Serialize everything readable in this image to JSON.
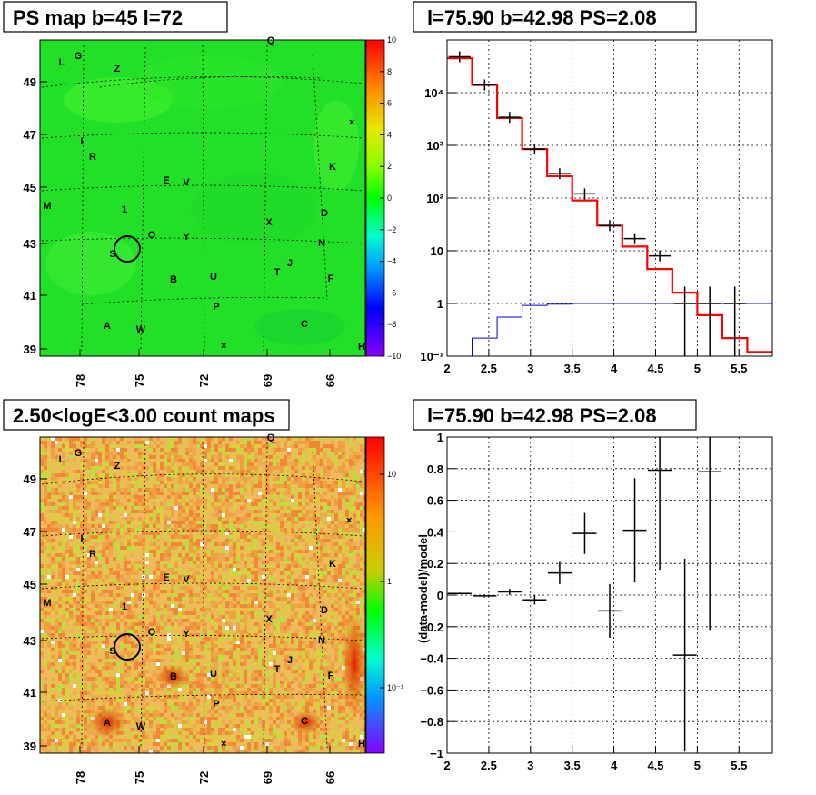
{
  "chart_data": [
    {
      "type": "heatmap",
      "title": "PS map b=45 l=72",
      "x_ticks": [
        "78",
        "75",
        "72",
        "69",
        "66"
      ],
      "y_ticks": [
        "39",
        "41",
        "43",
        "45",
        "47",
        "49"
      ],
      "colorbar_ticks": [
        "10",
        "8",
        "6",
        "4",
        "2",
        "0",
        "−2",
        "−4",
        "−6",
        "−8",
        "−10"
      ],
      "zrange": [
        -10,
        10
      ],
      "dominant_value": 0,
      "sources": [
        "Q",
        "L",
        "G",
        "Z",
        "I",
        "R",
        "E",
        "V",
        "K",
        "M",
        "1",
        "D",
        "X",
        "O",
        "Y",
        "N",
        "S",
        "T",
        "J",
        "B",
        "U",
        "F",
        "P",
        "A",
        "W",
        "C",
        "H"
      ]
    },
    {
      "type": "line",
      "title": "l=75.90 b=42.98 PS=2.08",
      "log_y": true,
      "xlim": [
        2,
        5.9
      ],
      "x_ticks": [
        "2",
        "2.5",
        "3",
        "3.5",
        "4",
        "4.5",
        "5",
        "5.5"
      ],
      "y_ticks": [
        "10⁻¹",
        "1",
        "10",
        "10²",
        "10³",
        "10⁴"
      ],
      "bin_edges": [
        2.0,
        2.3,
        2.6,
        2.9,
        3.2,
        3.5,
        3.8,
        4.1,
        4.4,
        4.7,
        5.0,
        5.3,
        5.6,
        5.9
      ],
      "series": [
        {
          "name": "",
          "color": "#ff0000",
          "values": [
            45000,
            14000,
            3300,
            850,
            260,
            90,
            30,
            12,
            4.5,
            1.6,
            0.6,
            0.22,
            0.12
          ]
        },
        {
          "name": "",
          "color": "#0000cc",
          "values": [
            0.1,
            0.22,
            0.55,
            0.92,
            0.97,
            1.0,
            1.0,
            1.0,
            1.0,
            1.0,
            1.0,
            1.0,
            1.0
          ]
        }
      ],
      "data_points": [
        {
          "x": 2.15,
          "y": 48000
        },
        {
          "x": 2.45,
          "y": 14000
        },
        {
          "x": 2.75,
          "y": 3400
        },
        {
          "x": 3.05,
          "y": 850
        },
        {
          "x": 3.35,
          "y": 290
        },
        {
          "x": 3.65,
          "y": 120
        },
        {
          "x": 3.95,
          "y": 30
        },
        {
          "x": 4.25,
          "y": 17
        },
        {
          "x": 4.55,
          "y": 8
        },
        {
          "x": 4.85,
          "y": 1
        },
        {
          "x": 5.15,
          "y": 1
        },
        {
          "x": 5.45,
          "y": 1
        }
      ]
    },
    {
      "type": "heatmap",
      "title": "2.50<logE<3.00 count maps",
      "x_ticks": [
        "78",
        "75",
        "72",
        "69",
        "66"
      ],
      "y_ticks": [
        "39",
        "41",
        "43",
        "45",
        "47",
        "49"
      ],
      "colorbar_ticks": [
        "10",
        "1",
        "10⁻¹"
      ],
      "log_z": true,
      "sources": [
        "Q",
        "L",
        "G",
        "Z",
        "I",
        "R",
        "E",
        "V",
        "K",
        "M",
        "1",
        "D",
        "X",
        "O",
        "Y",
        "N",
        "S",
        "T",
        "J",
        "B",
        "U",
        "F",
        "P",
        "A",
        "W",
        "C",
        "H"
      ]
    },
    {
      "type": "scatter",
      "title": "l=75.90 b=42.98 PS=2.08",
      "ylabel": "(data-model)/model",
      "xlim": [
        2,
        5.9
      ],
      "ylim": [
        -1,
        1
      ],
      "x_ticks": [
        "2",
        "2.5",
        "3",
        "3.5",
        "4",
        "4.5",
        "5",
        "5.5"
      ],
      "y_ticks": [
        "1",
        "0.8",
        "0.6",
        "0.4",
        "0.2",
        "0",
        "−0.2",
        "−0.4",
        "−0.6",
        "−0.8",
        "−1"
      ],
      "points": [
        {
          "x": 2.15,
          "y": 0.01,
          "err": 0.005
        },
        {
          "x": 2.45,
          "y": -0.005,
          "err": 0.01
        },
        {
          "x": 2.75,
          "y": 0.02,
          "err": 0.02
        },
        {
          "x": 3.05,
          "y": -0.03,
          "err": 0.03
        },
        {
          "x": 3.35,
          "y": 0.14,
          "err": 0.07
        },
        {
          "x": 3.65,
          "y": 0.39,
          "err": 0.13
        },
        {
          "x": 3.95,
          "y": -0.1,
          "err": 0.17
        },
        {
          "x": 4.25,
          "y": 0.41,
          "err": 0.33
        },
        {
          "x": 4.55,
          "y": 0.79,
          "err": 0.63
        },
        {
          "x": 4.85,
          "y": -0.38,
          "err": 0.61
        },
        {
          "x": 5.15,
          "y": 0.78,
          "err": 1.0
        }
      ]
    }
  ]
}
